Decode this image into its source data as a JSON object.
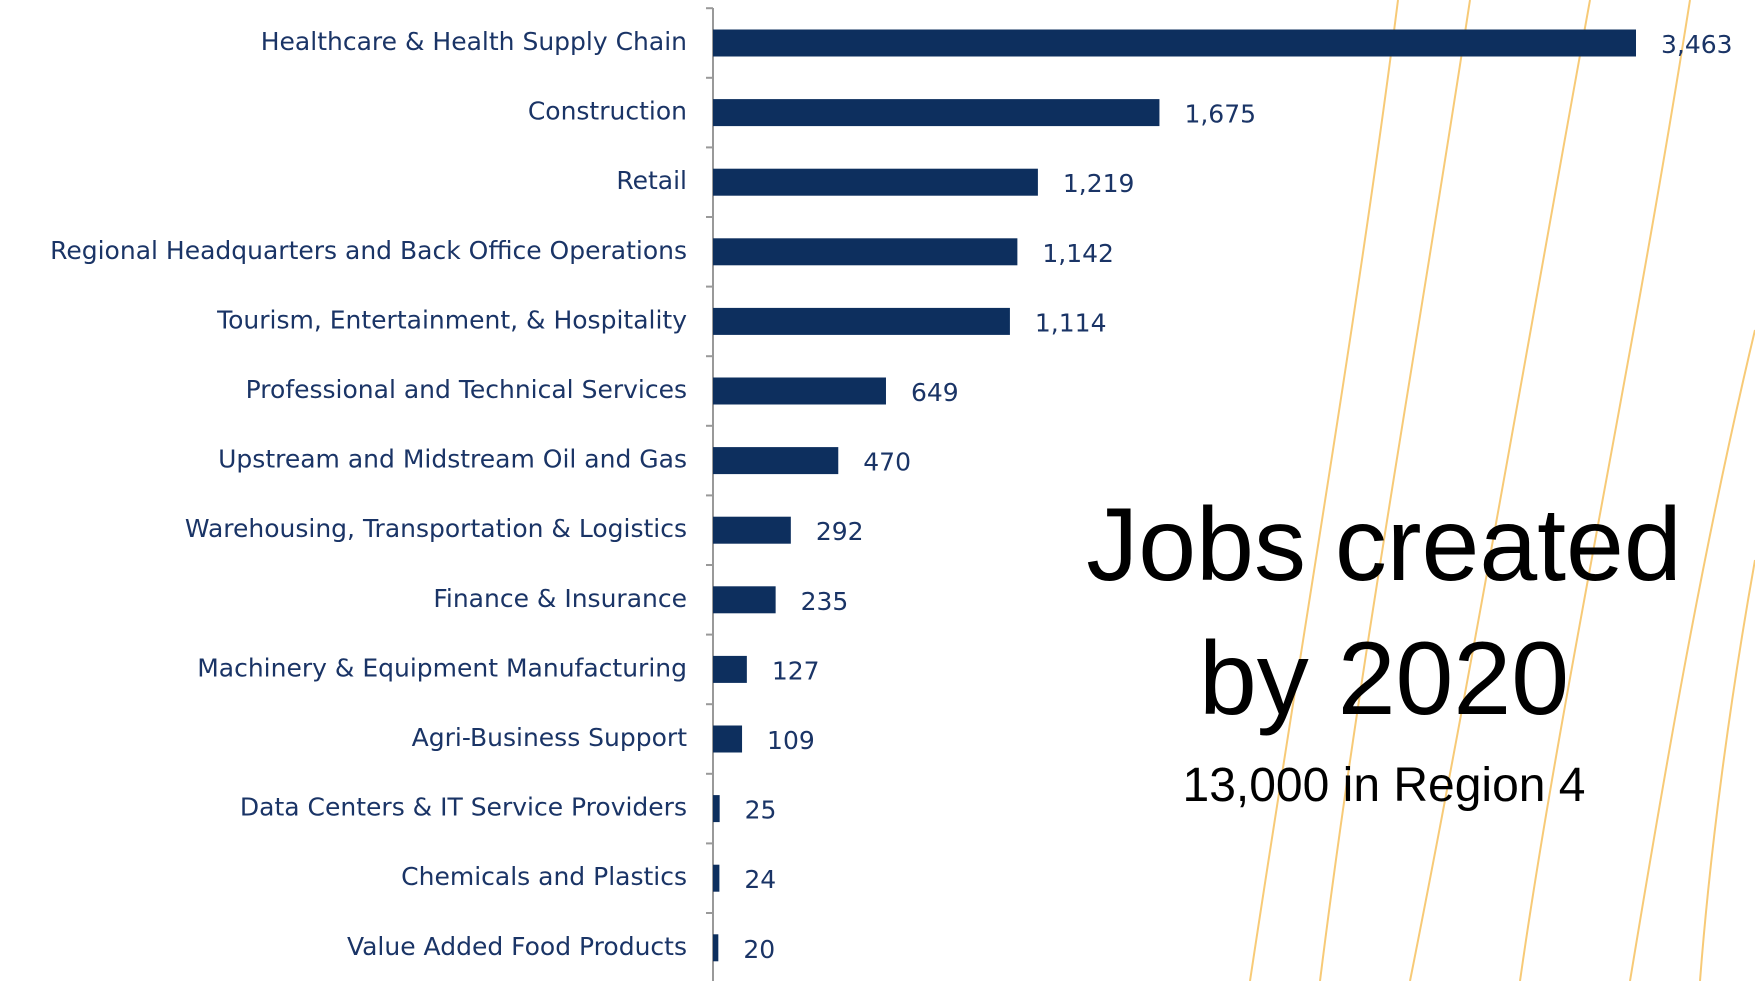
{
  "chart_data": {
    "type": "hbar",
    "title": "Jobs created by 2020",
    "subtitle": "13,000 in Region 4",
    "categories": [
      "Healthcare & Health Supply Chain",
      "Construction",
      "Retail",
      "Regional Headquarters and Back Office Operations",
      "Tourism, Entertainment, & Hospitality",
      "Professional and Technical Services",
      "Upstream and Midstream Oil and Gas",
      "Warehousing, Transportation & Logistics",
      "Finance & Insurance",
      "Machinery & Equipment Manufacturing",
      "Agri-Business Support",
      "Data Centers & IT Service Providers",
      "Chemicals and Plastics",
      "Value Added Food Products"
    ],
    "values": [
      3463,
      1675,
      1219,
      1142,
      1114,
      649,
      470,
      292,
      235,
      127,
      109,
      25,
      24,
      20
    ],
    "value_labels": [
      "3,463",
      "1,675",
      "1,219",
      "1,142",
      "1,114",
      "649",
      "470",
      "292",
      "235",
      "127",
      "109",
      "25",
      "24",
      "20"
    ],
    "color": "#0d2f5e"
  }
}
